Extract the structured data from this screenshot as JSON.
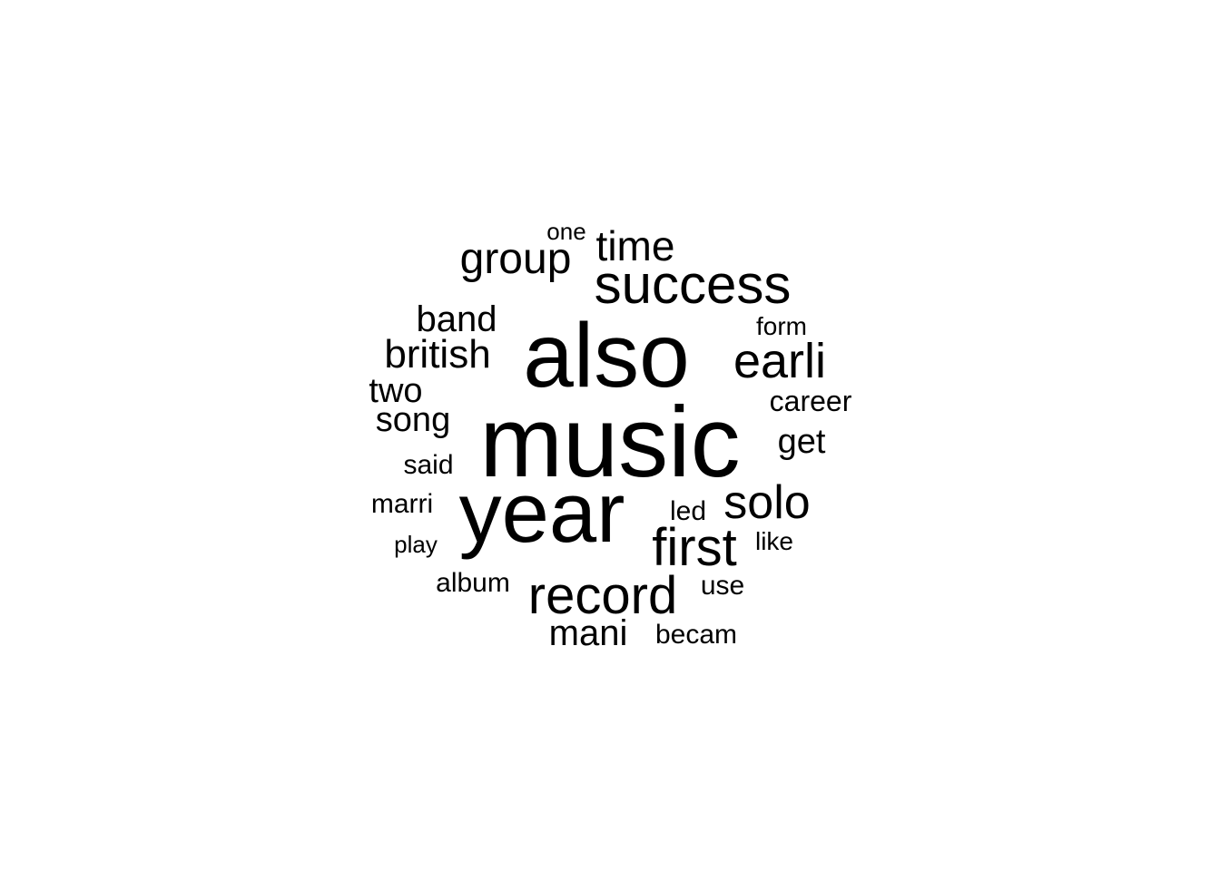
{
  "chart_data": {
    "type": "wordcloud",
    "word_color": "#000000",
    "background_color": "#ffffff",
    "words": [
      {
        "text": "music",
        "weight": 100
      },
      {
        "text": "also",
        "weight": 92
      },
      {
        "text": "year",
        "weight": 85
      },
      {
        "text": "success",
        "weight": 60
      },
      {
        "text": "first",
        "weight": 56
      },
      {
        "text": "record",
        "weight": 55
      },
      {
        "text": "earli",
        "weight": 50
      },
      {
        "text": "solo",
        "weight": 48
      },
      {
        "text": "group",
        "weight": 44
      },
      {
        "text": "time",
        "weight": 42
      },
      {
        "text": "british",
        "weight": 41
      },
      {
        "text": "band",
        "weight": 38
      },
      {
        "text": "mani",
        "weight": 37
      },
      {
        "text": "song",
        "weight": 36
      },
      {
        "text": "get",
        "weight": 35
      },
      {
        "text": "two",
        "weight": 34
      },
      {
        "text": "career",
        "weight": 32
      },
      {
        "text": "album",
        "weight": 31
      },
      {
        "text": "becam",
        "weight": 30
      },
      {
        "text": "said",
        "weight": 29
      },
      {
        "text": "marri",
        "weight": 29
      },
      {
        "text": "use",
        "weight": 28
      },
      {
        "text": "led",
        "weight": 28
      },
      {
        "text": "form",
        "weight": 28
      },
      {
        "text": "like",
        "weight": 27
      },
      {
        "text": "one",
        "weight": 27
      },
      {
        "text": "play",
        "weight": 26
      }
    ]
  }
}
